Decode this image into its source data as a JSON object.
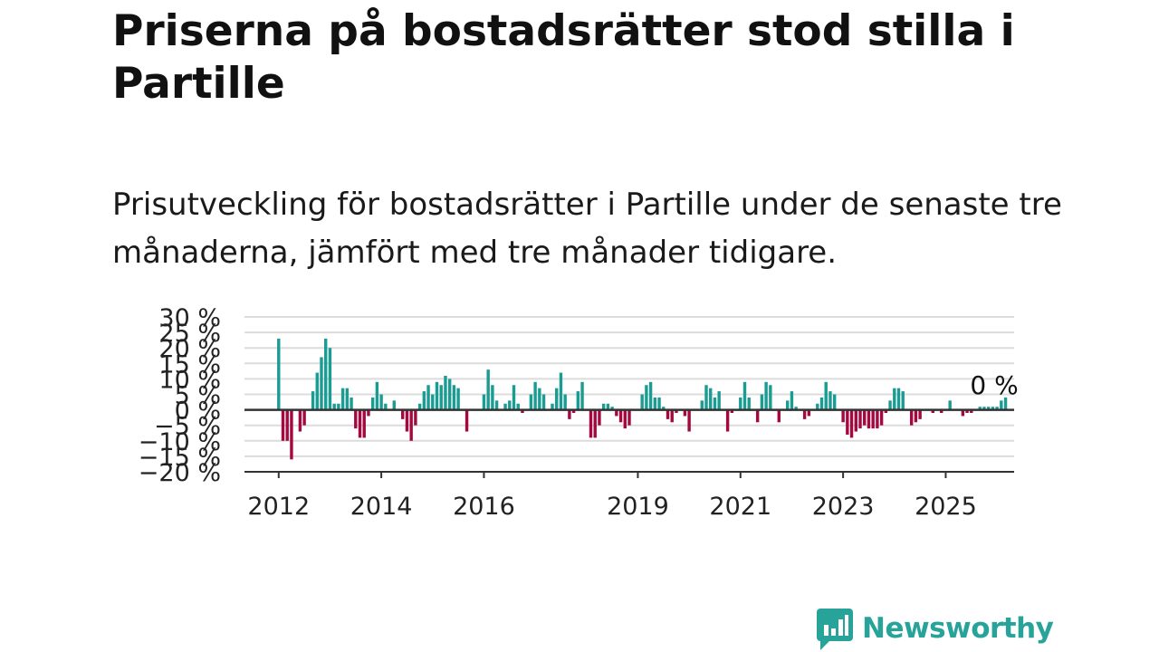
{
  "header": {
    "title": "Priserna på bostadsrätter stod stilla i Partille",
    "subtitle": "Prisutveckling för bostadsrätter i Partille under de senaste tre månaderna, jämfört med tre månader tidigare."
  },
  "brand": {
    "name": "Newsworthy",
    "color": "#27a39a",
    "icon": "bar-chart-speech-bubble-icon"
  },
  "chart_data": {
    "type": "bar",
    "title": "",
    "xlabel": "",
    "ylabel": "",
    "ylim": [
      -20,
      30
    ],
    "yticks": [
      30,
      25,
      20,
      15,
      10,
      5,
      0,
      -5,
      -10,
      -15,
      -20
    ],
    "ytick_labels": [
      "30 %",
      "25 %",
      "20 %",
      "15 %",
      "10 %",
      "5 %",
      "0 %",
      "−5 %",
      "−10 %",
      "−15 %",
      "−20 %"
    ],
    "xlim": [
      "2011-05",
      "2026-05"
    ],
    "xticks": [
      {
        "date": "2012-01",
        "label": "2012"
      },
      {
        "date": "2014-01",
        "label": "2014"
      },
      {
        "date": "2016-01",
        "label": "2016"
      },
      {
        "date": "2019-01",
        "label": "2019"
      },
      {
        "date": "2021-01",
        "label": "2021"
      },
      {
        "date": "2023-01",
        "label": "2023"
      },
      {
        "date": "2025-01",
        "label": "2025"
      }
    ],
    "grid": true,
    "colors": {
      "positive": "#1a9c93",
      "negative": "#a3093f",
      "grid": "#dcdcdc",
      "axis": "#333333"
    },
    "annotation": {
      "text": "0 %",
      "date": "2025-06"
    },
    "series": [
      {
        "start": "2012-01",
        "values": [
          23,
          -10,
          -10,
          -16,
          0,
          -7,
          -5,
          0,
          6,
          12,
          17,
          23,
          20,
          2,
          2,
          7,
          7,
          4,
          -6,
          -9,
          -9,
          -2,
          4,
          9,
          5,
          2,
          0,
          3,
          0,
          -3,
          -7,
          -10,
          -5,
          2,
          6,
          8,
          5,
          9,
          8,
          11,
          10,
          8,
          7,
          0,
          -7,
          0,
          0,
          0,
          5,
          13,
          8,
          3,
          0,
          2,
          3,
          8,
          2,
          -1,
          0,
          5,
          9,
          7,
          5,
          0,
          2,
          7,
          12,
          5,
          -3,
          -1,
          6,
          9,
          0,
          -9,
          -9,
          -5,
          2,
          2,
          1,
          -2,
          -4,
          -6,
          -5,
          0,
          0,
          5,
          8,
          9,
          4,
          4,
          1,
          -3,
          -4,
          -1,
          0,
          -2,
          -7,
          0,
          0,
          3,
          8,
          7,
          4,
          6,
          0,
          -7,
          -1,
          0,
          4,
          9,
          4,
          0,
          -4,
          5,
          9,
          8,
          0,
          -4,
          0,
          3,
          6,
          1,
          0,
          -3,
          -2,
          0,
          2,
          4,
          9,
          6,
          5,
          0,
          -4,
          -8,
          -9,
          -7,
          -6,
          -5,
          -6,
          -6,
          -6,
          -5,
          -1,
          3,
          7,
          7,
          6,
          0,
          -5,
          -4,
          -3,
          0,
          0,
          -1,
          0,
          -1,
          0,
          3,
          0,
          0,
          -2,
          -1,
          -1,
          0,
          1,
          1,
          1,
          1,
          1,
          3,
          4
        ]
      }
    ]
  }
}
